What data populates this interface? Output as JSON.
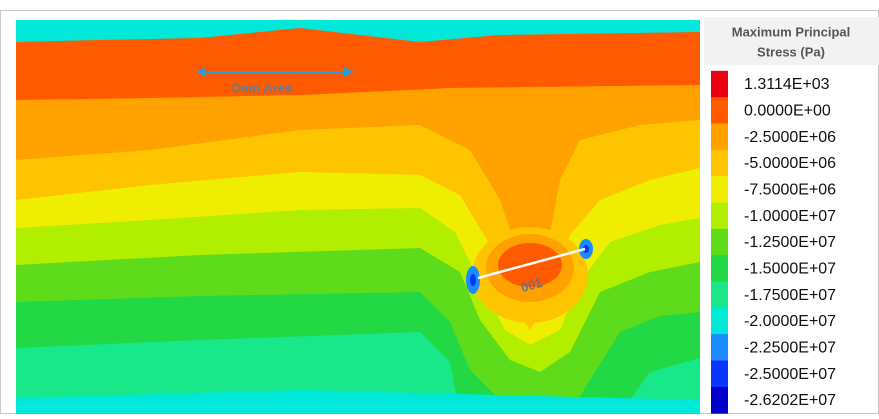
{
  "legend": {
    "title": [
      "Maximum Principal",
      "Stress (Pa)"
    ],
    "entries": [
      {
        "label": "1.3114E+03",
        "color": "#e80010"
      },
      {
        "label": "0.0000E+00",
        "color": "#ff5a00"
      },
      {
        "label": "-2.5000E+06",
        "color": "#ffa200"
      },
      {
        "label": "-5.0000E+06",
        "color": "#ffc400"
      },
      {
        "label": "-7.5000E+06",
        "color": "#f0ee00"
      },
      {
        "label": "-1.0000E+07",
        "color": "#b2ee00"
      },
      {
        "label": "-1.2500E+07",
        "color": "#5edc1c"
      },
      {
        "label": "-1.5000E+07",
        "color": "#22d844"
      },
      {
        "label": "-1.7500E+07",
        "color": "#18e88a"
      },
      {
        "label": "-2.0000E+07",
        "color": "#00e8d8"
      },
      {
        "label": "-2.2500E+07",
        "color": "#1a8cff"
      },
      {
        "label": "-2.5000E+07",
        "color": "#0a34ff"
      },
      {
        "label": "-2.6202E+07",
        "color": "#0000c8"
      }
    ]
  },
  "annotations": {
    "dam_area": "Dam Area",
    "crack": "001"
  }
}
